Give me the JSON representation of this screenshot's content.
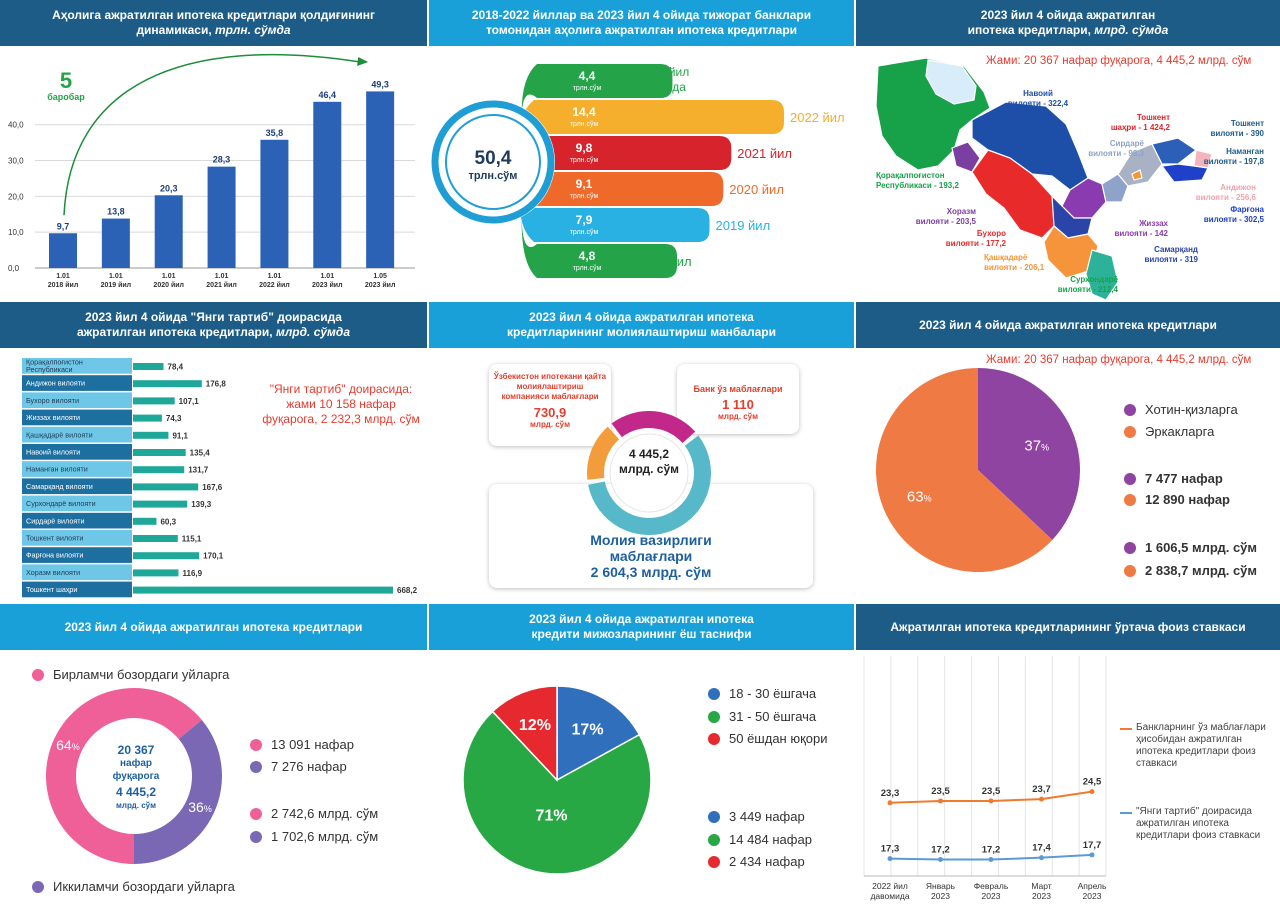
{
  "panels": {
    "p1": {
      "title": "Аҳолига ажратилган ипотека кредитлари қолдиғининг",
      "title_line2": "динамикаси,",
      "title_unit": "трлн. сўмда"
    },
    "p2": {
      "title": "2018-2022 йиллар ва 2023 йил 4 ойида тижорат банклари",
      "title_line2": "томонидан аҳолига ажратилган ипотека кредитлари"
    },
    "p3": {
      "title": "2023 йил 4 ойида ажратилган",
      "title_line2": "ипотека кредитлари,",
      "title_unit": "млрд. сўмда"
    },
    "p4": {
      "title": "2023 йил 4 ойида \"Янги тартиб\" доирасида",
      "title_line2": "ажратилган ипотека кредитлари,",
      "title_unit": "млрд. сўмда"
    },
    "p5": {
      "title": "2023 йил 4 ойида ажратилган ипотека",
      "title_line2": "кредитларининг молиялаштириш манбалари"
    },
    "p6": {
      "title": "2023 йил 4 ойида ажратилган ипотека кредитлари"
    },
    "p7": {
      "title": "2023 йил 4 ойида ажратилган ипотека кредитлари"
    },
    "p8": {
      "title": "2023 йил 4 ойида ажратилган ипотека",
      "title_line2": "кредити мижозларининг ёш таснифи"
    },
    "p9": {
      "title": "Ажратилган ипотека кредитларининг ўртача фоиз ставкаси"
    }
  },
  "p1_extra": {
    "growth_big": "5",
    "growth_word": "баробар"
  },
  "p2_extra": {
    "total_value": "50,4",
    "total_unit": "трлн.сўм",
    "unit": "трлн.сўм"
  },
  "p3_extra": {
    "total_note": "Жами: 20 367 нафар фуқарога, 4 445,2 млрд. сўм"
  },
  "p4_extra": {
    "note_line1": "\"Янги тартиб\" доирасида:",
    "note_line2": "жами 10 158 нафар",
    "note_line3": "фуқарога, 2 232,3 млрд. сўм"
  },
  "p5_extra": {
    "center_value": "4 445,2",
    "center_unit": "млрд. сўм",
    "box1_label": "Ўзбекистон ипотекани қайта молиялаштириш компанияси маблағлари",
    "box1_value": "730,9",
    "box1_unit": "млрд. сўм",
    "box2_label": "Банк ўз маблағлари",
    "box2_value": "1 110",
    "box2_unit": "млрд. сўм",
    "box3_label_1": "Молия вазирлиги",
    "box3_label_2": "маблағлари",
    "box3_value": "2 604,3 млрд. сўм"
  },
  "p6_extra": {
    "total_note": "Жами: 20 367 нафар фуқарога, 4 445,2 млрд. сўм",
    "legend": [
      {
        "label": "Хотин-қизларга",
        "color": "#8e44a0"
      },
      {
        "label": "Эркакларга",
        "color": "#f07a43"
      }
    ],
    "counts": [
      "7 477 нафар",
      "12 890 нафар"
    ],
    "sums": [
      "1 606,5 млрд. сўм",
      "2 838,7 млрд. сўм"
    ]
  },
  "p7_extra": {
    "legend_top": "Бирламчи бозордаги уйларга",
    "legend_bottom": "Иккиламчи  бозордаги уйларга",
    "center_1": "20 367",
    "center_2": "нафар",
    "center_3": "фуқарога",
    "center_4": "4 445,2",
    "center_5": "млрд. сўм",
    "counts": [
      "13 091 нафар",
      "7 276 нафар"
    ],
    "sums": [
      "2 742,6 млрд. сўм",
      "1 702,6 млрд. сўм"
    ],
    "colors": [
      "#ef5f98",
      "#7b68b5"
    ]
  },
  "p8_extra": {
    "legend": [
      {
        "label": "18 - 30 ёшгача",
        "color": "#2f6fbb"
      },
      {
        "label": "31 - 50 ёшгача",
        "color": "#28a745"
      },
      {
        "label": "50 ёшдан юқори",
        "color": "#e5292f"
      }
    ],
    "counts": [
      "3 449 нафар",
      "14 484 нафар",
      "2 434 нафар"
    ]
  },
  "p9_extra": {
    "legend_1": "Банкларнинг ўз маблағлари ҳисобидан ажратилган ипотека кредитлари фоиз ставкаси",
    "legend_2": "\"Янги тартиб\" доирасида ажратилган ипотека кредитлари фоиз ставкаси"
  },
  "chart_data": [
    {
      "type": "bar",
      "categories": [
        "1.01 2018 йил",
        "1.01 2019 йил",
        "1.01 2020 йил",
        "1.01 2021 йил",
        "1.01 2022 йил",
        "1.01 2023 йил",
        "1.05 2023 йил"
      ],
      "values": [
        9.7,
        13.8,
        20.3,
        28.3,
        35.8,
        46.4,
        49.3
      ],
      "data_labels": [
        "9,7",
        "13,8",
        "20,3",
        "28,3",
        "35,8",
        "46,4",
        "49,3"
      ],
      "ylim": [
        0,
        50
      ],
      "yticks": [
        "0,0",
        "10,0",
        "20,0",
        "30,0",
        "40,0"
      ],
      "color": "#2b62b5",
      "grid": true
    },
    {
      "type": "bar",
      "categories": [
        "2023 йил 4 ойида",
        "2022 йил",
        "2021 йил",
        "2020 йил",
        "2019 йил",
        "2018 йил"
      ],
      "values": [
        4.4,
        14.4,
        9.8,
        9.1,
        7.9,
        4.8
      ],
      "data_labels": [
        "4,4",
        "14,4",
        "9,8",
        "9,1",
        "7,9",
        "4,8"
      ],
      "colors": [
        "#24a348",
        "#f6ae2d",
        "#d7232b",
        "#ef6a2a",
        "#2ab1e4",
        "#24a348"
      ]
    },
    {
      "type": "table",
      "regions": [
        {
          "name": "Навоий вилояти",
          "value": "322,4"
        },
        {
          "name": "Тошкент шаҳри",
          "value": "1 424,2"
        },
        {
          "name": "Тошкент вилояти",
          "value": "390"
        },
        {
          "name": "Сирдарё вилояти",
          "value": "98,3"
        },
        {
          "name": "Наманган вилояти",
          "value": "197,8"
        },
        {
          "name": "Андижон вилояти",
          "value": "256,6"
        },
        {
          "name": "Фарғона вилояти",
          "value": "302,5"
        },
        {
          "name": "Қорақалпоғистон Республикаси",
          "value": "193,2"
        },
        {
          "name": "Хоразм вилояти",
          "value": "203,5"
        },
        {
          "name": "Бухоро вилояти",
          "value": "177,2"
        },
        {
          "name": "Жиззах вилояти",
          "value": "142"
        },
        {
          "name": "Самарқанд вилояти",
          "value": "319"
        },
        {
          "name": "Қашқадарё вилояти",
          "value": "206,1"
        },
        {
          "name": "Сурхондарё вилояти",
          "value": "212,4"
        }
      ]
    },
    {
      "type": "bar",
      "orientation": "horizontal",
      "categories": [
        "Қорақалпоғистон Республикаси",
        "Андижон вилояти",
        "Бухоро вилояти",
        "Жиззах вилояти",
        "Қашқадарё вилояти",
        "Навоий вилояти",
        "Наманган вилояти",
        "Самарқанд вилояти",
        "Сурхондарё вилояти",
        "Сирдарё вилояти",
        "Тошкент вилояти",
        "Фарғона вилояти",
        "Хоразм вилояти",
        "Тошкент шаҳри"
      ],
      "values": [
        78.4,
        176.8,
        107.1,
        74.3,
        91.1,
        135.4,
        131.7,
        167.6,
        139.3,
        60.3,
        115.1,
        170.1,
        116.9,
        668.2
      ],
      "data_labels": [
        "78,4",
        "176,8",
        "107,1",
        "74,3",
        "91,1",
        "135,4",
        "131,7",
        "167,6",
        "139,3",
        "60,3",
        "115,1",
        "170,1",
        "116,9",
        "668,2"
      ],
      "color": "#1fa89a"
    },
    {
      "type": "pie",
      "labels": [
        "Ўзбекистон ипотекани қайта молиялаштириш компанияси маблағлари",
        "Банк ўз маблағлари",
        "Молия вазирлиги маблағлари"
      ],
      "values": [
        730.9,
        1110,
        2604.3
      ],
      "colors": [
        "#f39c3c",
        "#c2278a",
        "#56b8c9"
      ]
    },
    {
      "type": "pie",
      "labels": [
        "Хотин-қизларга",
        "Эркакларга"
      ],
      "values": [
        37,
        63
      ],
      "data_labels": [
        "37",
        "63"
      ],
      "colors": [
        "#8e44a0",
        "#f07a43"
      ]
    },
    {
      "type": "pie",
      "labels": [
        "Бирламчи бозордаги уйларга",
        "Иккиламчи  бозордаги уйларга"
      ],
      "values": [
        64,
        36
      ],
      "data_labels": [
        "64",
        "36"
      ],
      "colors": [
        "#ef5f98",
        "#7b68b5"
      ]
    },
    {
      "type": "pie",
      "labels": [
        "18 - 30 ёшгача",
        "31 - 50 ёшгача",
        "50 ёшдан юқори"
      ],
      "values": [
        17,
        71,
        12
      ],
      "data_labels": [
        "17%",
        "71%",
        "12%"
      ],
      "colors": [
        "#2f6fbb",
        "#28a745",
        "#e5292f"
      ]
    },
    {
      "type": "line",
      "x": [
        "2022 йил давомида",
        "Январь 2023",
        "Февраль 2023",
        "Март 2023",
        "Апрель 2023"
      ],
      "series": [
        {
          "name": "Банкларнинг ўз маблағлари ҳисобидан ажратилган ипотека кредитлари фоиз ставкаси",
          "values": [
            23.3,
            23.5,
            23.5,
            23.7,
            24.5
          ],
          "labels": [
            "23,3",
            "23,5",
            "23,5",
            "23,7",
            "24,5"
          ],
          "color": "#f07a2f"
        },
        {
          "name": "\"Янги тартиб\" доирасида ажратилган ипотека кредитлари фоиз ставкаси",
          "values": [
            17.3,
            17.2,
            17.2,
            17.4,
            17.7
          ],
          "labels": [
            "17,3",
            "17,2",
            "17,2",
            "17,4",
            "17,7"
          ],
          "color": "#5b9bd5"
        }
      ],
      "grid": true
    }
  ]
}
